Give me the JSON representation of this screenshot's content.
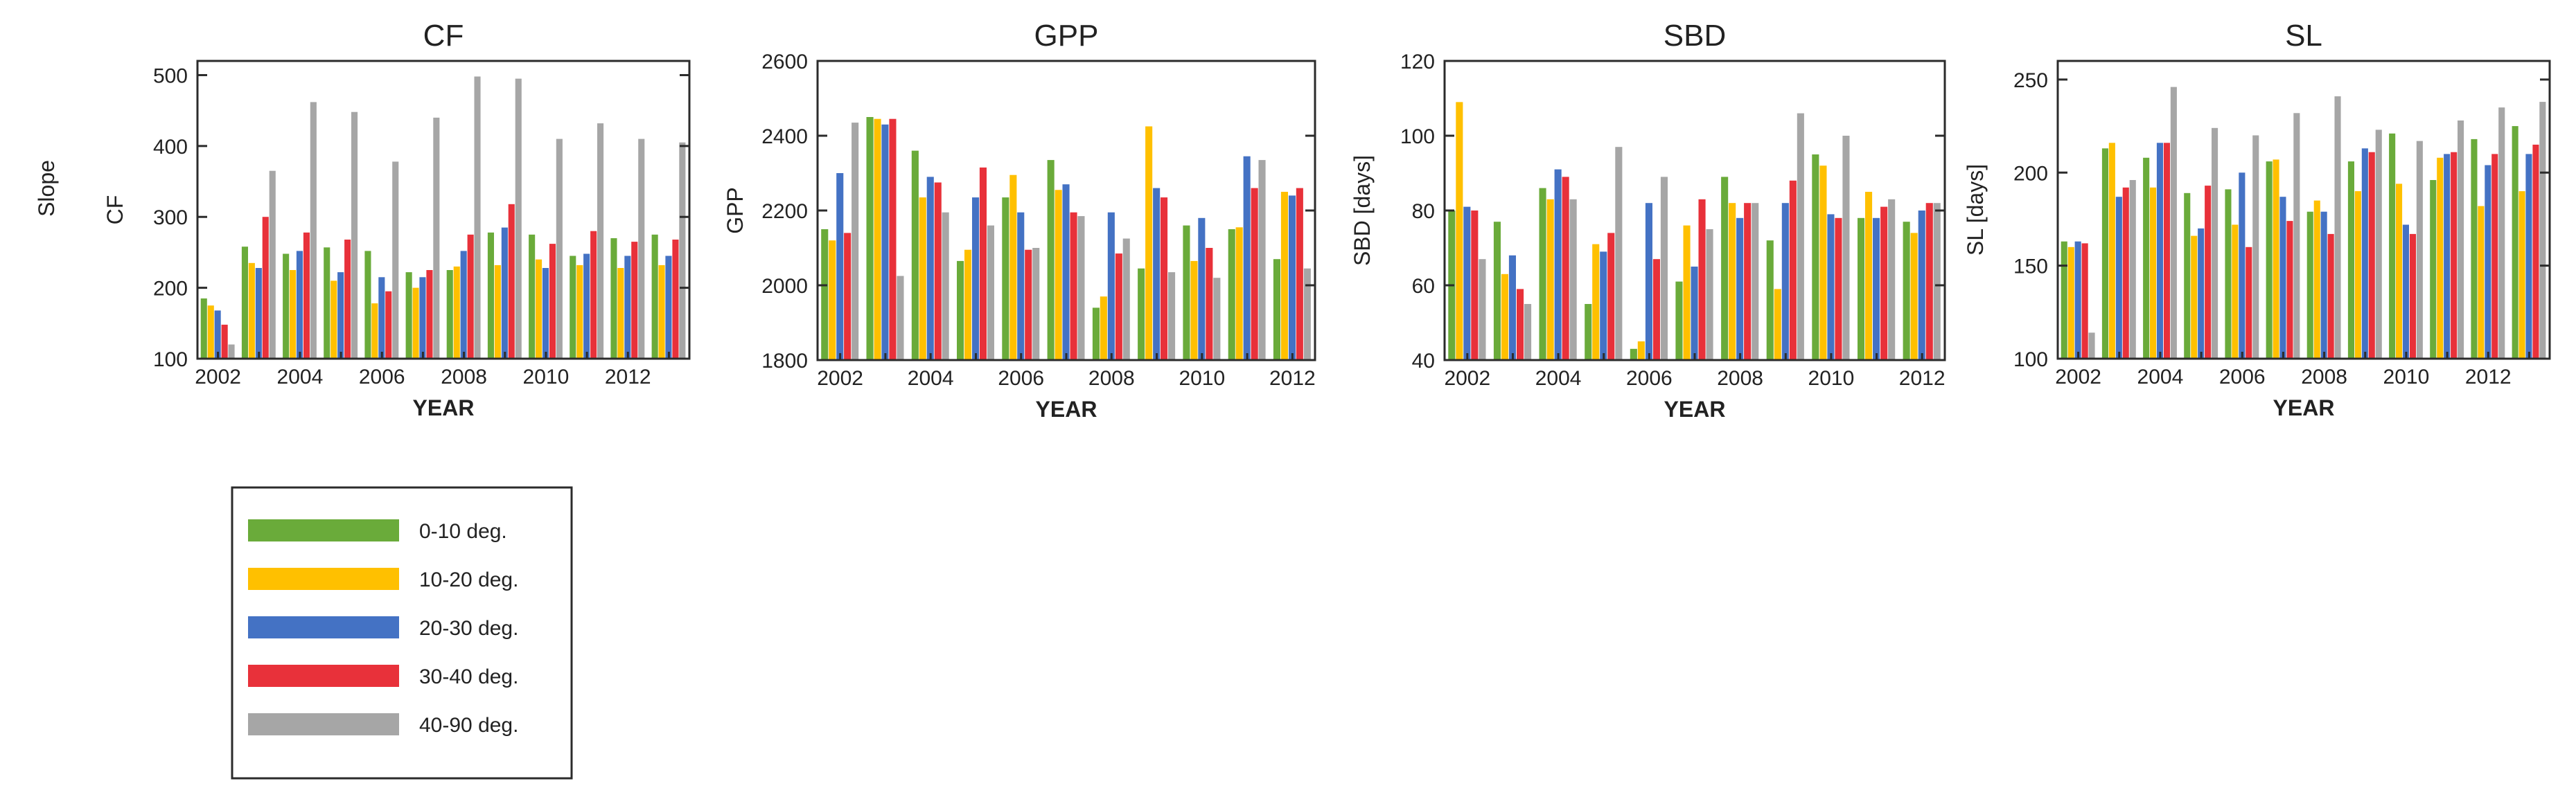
{
  "figure_row_label": "Slope",
  "chart_data": [
    {
      "type": "bar",
      "title": "CF",
      "xlabel": "YEAR",
      "ylabel": "CF",
      "ylim": [
        100,
        520
      ],
      "yticks": [
        100,
        200,
        300,
        400,
        500
      ],
      "categories": [
        2002,
        2003,
        2004,
        2005,
        2006,
        2007,
        2008,
        2009,
        2010,
        2011,
        2012,
        2013
      ],
      "xtick_labels": [
        "2002",
        "2004",
        "2006",
        "2008",
        "2010",
        "2012"
      ],
      "series": [
        {
          "name": "0-10 deg.",
          "values": [
            185,
            258,
            248,
            257,
            252,
            222,
            225,
            278,
            275,
            245,
            270,
            275
          ]
        },
        {
          "name": "10-20 deg.",
          "values": [
            175,
            235,
            225,
            210,
            178,
            200,
            230,
            232,
            240,
            232,
            228,
            232
          ]
        },
        {
          "name": "20-30 deg.",
          "values": [
            168,
            228,
            252,
            222,
            215,
            215,
            252,
            285,
            228,
            248,
            245,
            245
          ]
        },
        {
          "name": "30-40 deg.",
          "values": [
            148,
            300,
            278,
            268,
            195,
            225,
            275,
            318,
            262,
            280,
            265,
            268
          ]
        },
        {
          "name": "40-90 deg.",
          "values": [
            120,
            365,
            462,
            448,
            378,
            440,
            498,
            495,
            410,
            432,
            410,
            405
          ]
        }
      ]
    },
    {
      "type": "bar",
      "title": "GPP",
      "xlabel": "YEAR",
      "ylabel": "GPP",
      "ylim": [
        1800,
        2600
      ],
      "yticks": [
        1800,
        2000,
        2200,
        2400,
        2600
      ],
      "categories": [
        2002,
        2003,
        2004,
        2005,
        2006,
        2007,
        2008,
        2009,
        2010,
        2011,
        2012
      ],
      "xtick_labels": [
        "2002",
        "2004",
        "2006",
        "2008",
        "2010",
        "2012"
      ],
      "series": [
        {
          "name": "0-10 deg.",
          "values": [
            2150,
            2450,
            2360,
            2065,
            2235,
            2335,
            1940,
            2045,
            2160,
            2150,
            2070
          ]
        },
        {
          "name": "10-20 deg.",
          "values": [
            2120,
            2445,
            2235,
            2095,
            2295,
            2255,
            1970,
            2425,
            2065,
            2155,
            2250
          ]
        },
        {
          "name": "20-30 deg.",
          "values": [
            2300,
            2430,
            2290,
            2235,
            2195,
            2270,
            2195,
            2260,
            2180,
            2345,
            2240
          ]
        },
        {
          "name": "30-40 deg.",
          "values": [
            2140,
            2445,
            2275,
            2315,
            2095,
            2195,
            2085,
            2235,
            2100,
            2260,
            2260
          ]
        },
        {
          "name": "40-90 deg.",
          "values": [
            2435,
            2025,
            2195,
            2160,
            2100,
            2185,
            2125,
            2035,
            2020,
            2335,
            2045
          ]
        }
      ]
    },
    {
      "type": "bar",
      "title": "SBD",
      "xlabel": "YEAR",
      "ylabel": "SBD [days]",
      "ylim": [
        40,
        120
      ],
      "yticks": [
        40,
        60,
        80,
        100,
        120
      ],
      "categories": [
        2002,
        2003,
        2004,
        2005,
        2006,
        2007,
        2008,
        2009,
        2010,
        2011,
        2012
      ],
      "xtick_labels": [
        "2002",
        "2004",
        "2006",
        "2008",
        "2010",
        "2012"
      ],
      "series": [
        {
          "name": "0-10 deg.",
          "values": [
            80,
            77,
            86,
            55,
            43,
            61,
            89,
            72,
            95,
            78,
            77
          ]
        },
        {
          "name": "10-20 deg.",
          "values": [
            109,
            63,
            83,
            71,
            45,
            76,
            82,
            59,
            92,
            85,
            74
          ]
        },
        {
          "name": "20-30 deg.",
          "values": [
            81,
            68,
            91,
            69,
            82,
            65,
            78,
            82,
            79,
            78,
            80
          ]
        },
        {
          "name": "30-40 deg.",
          "values": [
            80,
            59,
            89,
            74,
            67,
            83,
            82,
            88,
            78,
            81,
            82
          ]
        },
        {
          "name": "40-90 deg.",
          "values": [
            67,
            55,
            83,
            97,
            89,
            75,
            82,
            106,
            100,
            83,
            82
          ]
        }
      ]
    },
    {
      "type": "bar",
      "title": "SL",
      "xlabel": "YEAR",
      "ylabel": "SL [days]",
      "ylim": [
        100,
        260
      ],
      "yticks": [
        100,
        150,
        200,
        250
      ],
      "categories": [
        2002,
        2003,
        2004,
        2005,
        2006,
        2007,
        2008,
        2009,
        2010,
        2011,
        2012,
        2013
      ],
      "xtick_labels": [
        "2002",
        "2004",
        "2006",
        "2008",
        "2010",
        "2012"
      ],
      "series": [
        {
          "name": "0-10 deg.",
          "values": [
            163,
            213,
            208,
            189,
            191,
            206,
            179,
            206,
            221,
            196,
            218,
            225
          ]
        },
        {
          "name": "10-20 deg.",
          "values": [
            160,
            216,
            192,
            166,
            172,
            207,
            185,
            190,
            194,
            208,
            182,
            190
          ]
        },
        {
          "name": "20-30 deg.",
          "values": [
            163,
            187,
            216,
            170,
            200,
            187,
            179,
            213,
            172,
            210,
            204,
            210
          ]
        },
        {
          "name": "30-40 deg.",
          "values": [
            162,
            192,
            216,
            193,
            160,
            174,
            167,
            211,
            167,
            211,
            210,
            215
          ]
        },
        {
          "name": "40-90 deg.",
          "values": [
            114,
            196,
            246,
            224,
            220,
            232,
            241,
            223,
            217,
            228,
            235,
            238
          ]
        }
      ]
    }
  ],
  "colors": {
    "0-10 deg.": "#6aab3a",
    "10-20 deg.": "#ffc000",
    "20-30 deg.": "#4472c4",
    "30-40 deg.": "#e8313a",
    "40-90 deg.": "#a6a6a6"
  },
  "legend": {
    "items": [
      "0-10 deg.",
      "10-20 deg.",
      "20-30 deg.",
      "30-40 deg.",
      "40-90 deg."
    ]
  }
}
